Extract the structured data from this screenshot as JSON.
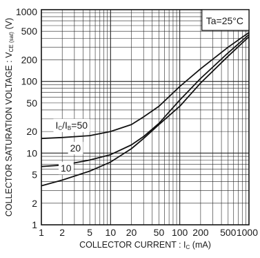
{
  "chart_data": {
    "type": "line",
    "x_scale": "log",
    "y_scale": "log",
    "xlim": [
      1,
      1000
    ],
    "ylim": [
      1,
      1000
    ],
    "grid": true,
    "xlabel": {
      "main": "COLLECTOR CURRENT : I",
      "sub": "C",
      "unit": " (mA)"
    },
    "ylabel": {
      "main": "COLLECTOR SATURATION VOLTAGE : V",
      "sub": "CE (sat)",
      "unit": " (V)"
    },
    "x_ticks": [
      "1",
      "2",
      "5",
      "10",
      "20",
      "50",
      "100",
      "200",
      "500",
      "1000"
    ],
    "x_tick_values": [
      1,
      2,
      5,
      10,
      20,
      50,
      100,
      200,
      500,
      1000
    ],
    "y_ticks": [
      "1",
      "2",
      "5",
      "10",
      "20",
      "50",
      "100",
      "200",
      "500",
      "1000"
    ],
    "y_tick_values": [
      1,
      2,
      5,
      10,
      20,
      50,
      100,
      200,
      500,
      1000
    ],
    "condition_label": "Ta=25°C",
    "series": [
      {
        "name": "Ic/IB=50",
        "label_parts": {
          "a": "I",
          "a_sub": "C",
          "b": "/I",
          "b_sub": "B",
          "c": "=50"
        },
        "label_at": {
          "x": 1.6,
          "y": 22
        },
        "x": [
          1,
          2,
          5,
          10,
          20,
          30,
          50,
          100,
          200,
          500,
          1000
        ],
        "y": [
          16,
          16.5,
          17.5,
          20,
          25,
          32,
          45,
          85,
          150,
          300,
          480
        ]
      },
      {
        "name": "20",
        "label_parts": {
          "c": "20"
        },
        "label_at": {
          "x": 2.6,
          "y": 10.5
        },
        "x": [
          1,
          2,
          5,
          10,
          20,
          30,
          50,
          100,
          200,
          500,
          1000
        ],
        "y": [
          6.5,
          6.8,
          8,
          9.5,
          13,
          17,
          26,
          55,
          110,
          250,
          450
        ]
      },
      {
        "name": "10",
        "label_parts": {
          "c": "10"
        },
        "label_at": {
          "x": 1.9,
          "y": 5.5
        },
        "x": [
          1,
          2,
          5,
          10,
          20,
          30,
          50,
          100,
          200,
          500,
          1000
        ],
        "y": [
          3.5,
          4.2,
          5.6,
          7.5,
          11.5,
          16,
          25,
          45,
          95,
          225,
          420
        ]
      }
    ]
  }
}
